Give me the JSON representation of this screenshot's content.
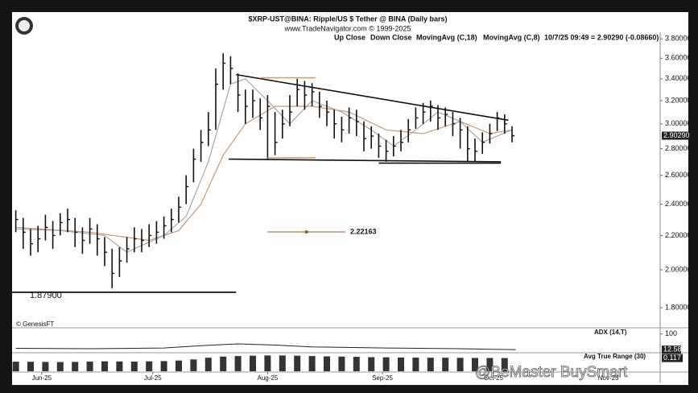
{
  "header": {
    "title": "$XRP-UST@BINA:  Ripple/US $ Tether @ BINA  (Daily bars)",
    "subtitle": "www.TradeNavigator.com © 1999-2025",
    "last_quote": "10/7/25 09:49 = 2.90290 (-0.08660)",
    "copyright": "© GenesisFT",
    "watermark": "@BeMaster BuySmart"
  },
  "chart_data": [
    {
      "type": "ohlc",
      "color": "#111111",
      "log_scale": true,
      "xlim": [
        -1,
        174
      ],
      "ylim": [
        1.71,
        3.87
      ],
      "yticks": [
        {
          "value": 3.8,
          "label": "3.80000"
        },
        {
          "value": 3.6,
          "label": "3.60000"
        },
        {
          "value": 3.4,
          "label": "3.40000"
        },
        {
          "value": 3.2,
          "label": "3.20000"
        },
        {
          "value": 3.0,
          "label": "3.00000"
        },
        {
          "value": 2.8,
          "label": "2.80000"
        },
        {
          "value": 2.6,
          "label": "2.60000"
        },
        {
          "value": 2.4,
          "label": "2.40000"
        },
        {
          "value": 2.2,
          "label": "2.20000"
        },
        {
          "value": 2.0,
          "label": "2.00000"
        },
        {
          "value": 1.8,
          "label": "1.80000"
        }
      ],
      "xticks": [
        {
          "value": 7,
          "label": "Jun-25"
        },
        {
          "value": 37,
          "label": "Jul-25"
        },
        {
          "value": 68,
          "label": "Aug-25"
        },
        {
          "value": 99,
          "label": "Sep-25"
        },
        {
          "value": 129,
          "label": "Oct-25"
        },
        {
          "value": 160,
          "label": "Nov-25"
        }
      ],
      "bar_legend": [
        {
          "name": "Up Close",
          "color": "#111111"
        },
        {
          "name": "Down Close",
          "color": "#111111"
        }
      ],
      "x": [
        0,
        2,
        4,
        6,
        8,
        10,
        12,
        14,
        16,
        18,
        20,
        22,
        24,
        26,
        28,
        30,
        32,
        34,
        36,
        38,
        40,
        42,
        44,
        46,
        48,
        50,
        52,
        54,
        56,
        58,
        60,
        62,
        64,
        66,
        68,
        70,
        72,
        74,
        76,
        78,
        80,
        82,
        84,
        86,
        88,
        90,
        92,
        94,
        96,
        98,
        100,
        102,
        104,
        106,
        108,
        110,
        112,
        114,
        116,
        118,
        120,
        122,
        124,
        126,
        128,
        130,
        132,
        134
      ],
      "high": [
        2.36,
        2.31,
        2.24,
        2.26,
        2.33,
        2.29,
        2.34,
        2.37,
        2.31,
        2.25,
        2.31,
        2.27,
        2.19,
        2.12,
        2.13,
        2.19,
        2.25,
        2.24,
        2.27,
        2.29,
        2.32,
        2.37,
        2.45,
        2.6,
        2.8,
        2.95,
        3.1,
        3.5,
        3.65,
        3.62,
        3.45,
        3.3,
        3.3,
        3.22,
        3.25,
        3.1,
        3.12,
        3.25,
        3.4,
        3.38,
        3.36,
        3.28,
        3.2,
        3.12,
        3.06,
        3.14,
        3.12,
        3.02,
        2.98,
        2.92,
        2.87,
        2.9,
        2.95,
        3.04,
        3.14,
        3.18,
        3.2,
        3.16,
        3.14,
        3.1,
        3.05,
        2.98,
        2.88,
        2.93,
        3.0,
        3.1,
        3.08,
        2.98
      ],
      "low": [
        2.22,
        2.12,
        2.08,
        2.1,
        2.17,
        2.12,
        2.2,
        2.22,
        2.13,
        2.09,
        2.15,
        2.08,
        2.02,
        1.9,
        1.96,
        2.04,
        2.1,
        2.1,
        2.13,
        2.15,
        2.18,
        2.22,
        2.28,
        2.4,
        2.55,
        2.7,
        2.82,
        2.95,
        3.3,
        3.35,
        3.1,
        3.0,
        3.05,
        2.95,
        2.72,
        2.75,
        2.88,
        2.98,
        3.15,
        3.12,
        3.15,
        3.05,
        2.98,
        2.88,
        2.85,
        2.92,
        2.9,
        2.78,
        2.8,
        2.73,
        2.7,
        2.74,
        2.78,
        2.85,
        2.96,
        3.0,
        3.02,
        2.95,
        2.98,
        2.9,
        2.8,
        2.7,
        2.7,
        2.76,
        2.84,
        2.94,
        2.92,
        2.85
      ],
      "close": [
        2.3,
        2.22,
        2.15,
        2.18,
        2.25,
        2.2,
        2.28,
        2.3,
        2.22,
        2.17,
        2.24,
        2.18,
        2.1,
        1.98,
        2.05,
        2.12,
        2.18,
        2.17,
        2.2,
        2.22,
        2.26,
        2.3,
        2.38,
        2.52,
        2.72,
        2.85,
        2.95,
        3.35,
        3.55,
        3.5,
        3.25,
        3.15,
        3.2,
        3.05,
        3.15,
        2.85,
        3.0,
        3.1,
        3.3,
        3.25,
        3.28,
        3.15,
        3.1,
        3.0,
        2.95,
        3.05,
        3.02,
        2.88,
        2.9,
        2.82,
        2.78,
        2.82,
        2.85,
        2.95,
        3.05,
        3.1,
        3.15,
        3.05,
        3.08,
        3.0,
        2.95,
        2.8,
        2.78,
        2.85,
        2.92,
        3.05,
        3.0,
        2.9029
      ],
      "series": [
        {
          "name": "MovingAvg (C,18)",
          "color": "#c49a7a",
          "x": [
            0,
            20,
            36,
            44,
            50,
            56,
            62,
            70,
            80,
            90,
            100,
            110,
            120,
            128,
            134
          ],
          "values": [
            2.25,
            2.22,
            2.17,
            2.23,
            2.4,
            2.75,
            3.0,
            3.15,
            3.15,
            3.1,
            2.95,
            2.92,
            3.02,
            2.92,
            2.95
          ]
        },
        {
          "name": "MovingAvg (C,8)",
          "color": "#a8a8a8",
          "x": [
            0,
            12,
            24,
            30,
            40,
            46,
            52,
            58,
            62,
            68,
            74,
            80,
            88,
            96,
            102,
            108,
            114,
            120,
            126,
            134
          ],
          "values": [
            2.24,
            2.23,
            2.2,
            2.1,
            2.2,
            2.32,
            2.7,
            3.35,
            3.4,
            3.2,
            3.0,
            3.2,
            3.1,
            2.95,
            2.82,
            2.95,
            3.1,
            3.02,
            2.85,
            2.95
          ]
        }
      ],
      "levels": [
        {
          "value": 1.879,
          "label": "1.87900",
          "x": [
            -1,
            59.5
          ],
          "color": "#111111"
        },
        {
          "value": 2.22163,
          "label": "2.22163",
          "x": [
            68,
            89
          ],
          "color": "#a0522d"
        }
      ],
      "lines": [
        {
          "x": [
            59.5,
            133
          ],
          "y": [
            3.44,
            3.03
          ],
          "color": "#111111"
        },
        {
          "x": [
            57.5,
            131
          ],
          "y": [
            2.72,
            2.7
          ],
          "color": "#111111"
        },
        {
          "x": [
            98,
            131
          ],
          "y": [
            2.69,
            2.69
          ],
          "color": "#111111"
        },
        {
          "x": [
            66,
            81
          ],
          "y": [
            3.41,
            3.41
          ],
          "color": "#d9a070"
        },
        {
          "x": [
            68,
            81
          ],
          "y": [
            2.73,
            2.73
          ],
          "color": "#d9a070"
        }
      ],
      "last_price": {
        "value": 2.9029,
        "label": "2.90290"
      }
    },
    {
      "type": "line",
      "name": "ADX (14,T)",
      "color": "#222222",
      "ylim": [
        0,
        130
      ],
      "yticks": [
        100
      ],
      "x": [
        0,
        20,
        40,
        50,
        60,
        70,
        80,
        100,
        120,
        135
      ],
      "values": [
        20,
        18,
        22,
        35,
        45,
        38,
        28,
        22,
        18,
        12.58
      ]
    },
    {
      "type": "bar",
      "name": "Avg True Range (30)",
      "color": "#111111",
      "ylim": [
        0,
        0.15
      ],
      "x": [
        0,
        4,
        8,
        12,
        16,
        20,
        24,
        28,
        32,
        36,
        40,
        44,
        48,
        52,
        56,
        60,
        64,
        68,
        72,
        76,
        80,
        84,
        88,
        92,
        96,
        100,
        104,
        108,
        112,
        116,
        120,
        124,
        128,
        132
      ],
      "values": [
        0.085,
        0.084,
        0.083,
        0.082,
        0.083,
        0.086,
        0.088,
        0.087,
        0.086,
        0.088,
        0.09,
        0.095,
        0.105,
        0.12,
        0.13,
        0.135,
        0.138,
        0.14,
        0.14,
        0.138,
        0.135,
        0.132,
        0.13,
        0.128,
        0.125,
        0.124,
        0.122,
        0.121,
        0.12,
        0.12,
        0.119,
        0.118,
        0.118,
        0.117
      ]
    }
  ]
}
